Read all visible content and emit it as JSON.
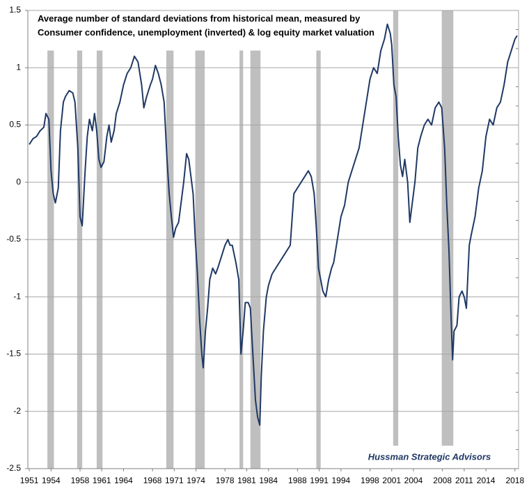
{
  "chart_data": {
    "type": "line",
    "title": [
      "Average number of standard deviations from historical mean, measured by",
      "Consumer confidence, unemployment (inverted) & log equity market valuation"
    ],
    "annotation": "Hussman Strategic Advisors",
    "x": [
      1951.0,
      1951.5,
      1952.0,
      1952.5,
      1953.0,
      1953.3,
      1953.7,
      1954.0,
      1954.3,
      1954.6,
      1955.0,
      1955.3,
      1955.7,
      1956.0,
      1956.5,
      1957.0,
      1957.3,
      1957.7,
      1958.0,
      1958.3,
      1958.7,
      1959.0,
      1959.3,
      1959.7,
      1960.0,
      1960.3,
      1960.6,
      1960.9,
      1961.3,
      1961.7,
      1962.0,
      1962.3,
      1962.7,
      1963.0,
      1963.5,
      1964.0,
      1964.5,
      1965.0,
      1965.5,
      1966.0,
      1966.5,
      1966.8,
      1967.2,
      1967.7,
      1968.0,
      1968.4,
      1968.8,
      1969.2,
      1969.6,
      1970.0,
      1970.3,
      1970.6,
      1970.9,
      1971.2,
      1971.6,
      1971.9,
      1972.3,
      1972.7,
      1973.0,
      1973.3,
      1973.6,
      1973.9,
      1974.2,
      1974.5,
      1974.8,
      1975.0,
      1975.3,
      1975.6,
      1975.9,
      1976.3,
      1976.7,
      1977.0,
      1977.5,
      1978.0,
      1978.4,
      1978.7,
      1979.0,
      1979.5,
      1979.9,
      1980.2,
      1980.5,
      1980.8,
      1981.2,
      1981.5,
      1981.8,
      1982.2,
      1982.5,
      1982.8,
      1983.0,
      1983.3,
      1983.7,
      1984.0,
      1984.5,
      1985.0,
      1985.5,
      1986.0,
      1986.5,
      1987.0,
      1987.5,
      1988.0,
      1988.5,
      1989.0,
      1989.5,
      1989.9,
      1990.3,
      1990.6,
      1990.9,
      1991.2,
      1991.5,
      1991.9,
      1992.3,
      1992.7,
      1993.0,
      1993.5,
      1994.0,
      1994.5,
      1995.0,
      1995.5,
      1996.0,
      1996.5,
      1997.0,
      1997.5,
      1998.0,
      1998.5,
      1999.0,
      1999.5,
      2000.0,
      2000.4,
      2000.8,
      2001.0,
      2001.3,
      2001.6,
      2001.9,
      2002.2,
      2002.5,
      2002.8,
      2003.2,
      2003.5,
      2003.8,
      2004.2,
      2004.6,
      2005.0,
      2005.5,
      2006.0,
      2006.5,
      2007.0,
      2007.5,
      2007.9,
      2008.3,
      2008.6,
      2008.9,
      2009.2,
      2009.4,
      2009.6,
      2010.0,
      2010.3,
      2010.7,
      2011.0,
      2011.3,
      2011.7,
      2012.0,
      2012.5,
      2013.0,
      2013.5,
      2014.0,
      2014.5,
      2015.0,
      2015.5,
      2016.0,
      2016.5,
      2017.0,
      2017.5,
      2018.0,
      2018.3
    ],
    "series": [
      {
        "color": "#1f3864",
        "values": [
          0.33,
          0.38,
          0.4,
          0.45,
          0.48,
          0.6,
          0.55,
          0.1,
          -0.1,
          -0.18,
          -0.05,
          0.45,
          0.7,
          0.75,
          0.8,
          0.78,
          0.7,
          0.3,
          -0.3,
          -0.38,
          0.1,
          0.4,
          0.55,
          0.45,
          0.6,
          0.45,
          0.2,
          0.13,
          0.18,
          0.4,
          0.5,
          0.35,
          0.45,
          0.6,
          0.7,
          0.85,
          0.95,
          1.0,
          1.1,
          1.05,
          0.85,
          0.65,
          0.75,
          0.85,
          0.9,
          1.02,
          0.95,
          0.85,
          0.7,
          0.2,
          -0.1,
          -0.3,
          -0.48,
          -0.4,
          -0.35,
          -0.2,
          0.0,
          0.25,
          0.2,
          0.05,
          -0.1,
          -0.5,
          -0.8,
          -1.2,
          -1.5,
          -1.62,
          -1.3,
          -1.1,
          -0.85,
          -0.75,
          -0.8,
          -0.75,
          -0.65,
          -0.55,
          -0.5,
          -0.55,
          -0.55,
          -0.7,
          -0.85,
          -1.5,
          -1.3,
          -1.05,
          -1.05,
          -1.1,
          -1.45,
          -1.9,
          -2.05,
          -2.12,
          -1.7,
          -1.3,
          -1.0,
          -0.9,
          -0.8,
          -0.75,
          -0.7,
          -0.65,
          -0.6,
          -0.55,
          -0.1,
          -0.05,
          0.0,
          0.05,
          0.1,
          0.05,
          -0.1,
          -0.4,
          -0.75,
          -0.85,
          -0.95,
          -1.0,
          -0.85,
          -0.75,
          -0.7,
          -0.5,
          -0.3,
          -0.2,
          0.0,
          0.1,
          0.2,
          0.3,
          0.5,
          0.7,
          0.9,
          1.0,
          0.95,
          1.15,
          1.25,
          1.38,
          1.3,
          1.2,
          0.85,
          0.75,
          0.4,
          0.15,
          0.05,
          0.2,
          0.0,
          -0.35,
          -0.2,
          0.0,
          0.3,
          0.4,
          0.5,
          0.55,
          0.5,
          0.65,
          0.7,
          0.65,
          0.3,
          -0.2,
          -0.6,
          -1.2,
          -1.55,
          -1.3,
          -1.25,
          -1.0,
          -0.95,
          -1.0,
          -1.1,
          -0.55,
          -0.45,
          -0.3,
          -0.05,
          0.1,
          0.4,
          0.55,
          0.5,
          0.65,
          0.7,
          0.85,
          1.05,
          1.15,
          1.25,
          1.28
        ]
      }
    ],
    "shaded_periods": [
      {
        "x": [
          1953.5,
          1954.4
        ],
        "y": [
          -2.5,
          1.15
        ]
      },
      {
        "x": [
          1957.6,
          1958.3
        ],
        "y": [
          -2.5,
          1.15
        ]
      },
      {
        "x": [
          1960.3,
          1961.1
        ],
        "y": [
          -2.5,
          1.15
        ]
      },
      {
        "x": [
          1969.9,
          1970.9
        ],
        "y": [
          -2.5,
          1.15
        ]
      },
      {
        "x": [
          1973.9,
          1975.2
        ],
        "y": [
          -2.5,
          1.15
        ]
      },
      {
        "x": [
          1980.0,
          1980.5
        ],
        "y": [
          -2.5,
          1.15
        ]
      },
      {
        "x": [
          1981.5,
          1982.9
        ],
        "y": [
          -2.5,
          1.15
        ]
      },
      {
        "x": [
          1990.6,
          1991.2
        ],
        "y": [
          -2.5,
          1.15
        ]
      },
      {
        "x": [
          2001.2,
          2001.9
        ],
        "y": [
          -2.3,
          1.5
        ]
      },
      {
        "x": [
          2007.9,
          2009.5
        ],
        "y": [
          -2.3,
          1.5
        ]
      }
    ],
    "shade_color": "#bfbfbf",
    "xlim": [
      1950.8,
      2018.5
    ],
    "xticks": [
      1951,
      1954,
      1958,
      1961,
      1964,
      1968,
      1971,
      1974,
      1978,
      1981,
      1984,
      1988,
      1991,
      1994,
      1998,
      2001,
      2004,
      2008,
      2011,
      2014,
      2018
    ],
    "ylim": [
      -2.5,
      1.5
    ],
    "yticks": [
      1.5,
      1,
      0.5,
      0,
      -0.5,
      -1,
      -1.5,
      -2,
      -2.5
    ],
    "grid": true
  }
}
